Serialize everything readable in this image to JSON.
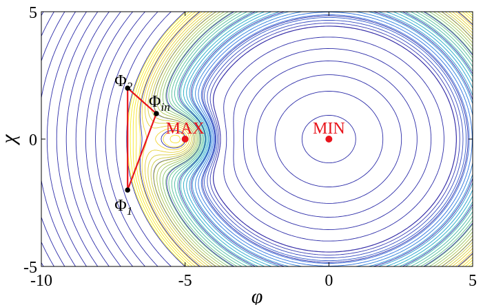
{
  "chart_data": {
    "type": "contour",
    "xlabel": "φ",
    "ylabel": "χ",
    "xlim": [
      -10,
      5
    ],
    "ylim": [
      -5,
      5
    ],
    "xticks": [
      -10,
      -5,
      0,
      5
    ],
    "yticks": [
      -5,
      0,
      5
    ],
    "xtick_labels": [
      "-10",
      "-5",
      "0",
      "5"
    ],
    "ytick_labels": [
      "-5",
      "0",
      "5"
    ],
    "grid": false,
    "colors": {
      "path": "#e8141c",
      "point": "#000000",
      "marker": "#e8141c",
      "low_contour": "#2b2ba8",
      "peak_colormap": [
        "#3a2fa8",
        "#2a6fe0",
        "#1aa9c8",
        "#55c18f",
        "#b5c44a",
        "#f5d52e",
        "#f9f420"
      ]
    },
    "extrema": [
      {
        "label": "MAX",
        "x": -5,
        "y": 0
      },
      {
        "label": "MIN",
        "x": 0,
        "y": 0
      }
    ],
    "path_points": [
      {
        "symbol": "Φ",
        "subscript": "1",
        "x": -7,
        "y": -2
      },
      {
        "symbol": "Φ",
        "subscript": "2",
        "x": -7,
        "y": 2
      },
      {
        "symbol": "Φ",
        "subscript": "in",
        "x": -6,
        "y": 1
      }
    ],
    "path_order": [
      "1",
      "2",
      "in",
      "1"
    ],
    "contour_level_count": 48,
    "peak_level_count": 30
  }
}
